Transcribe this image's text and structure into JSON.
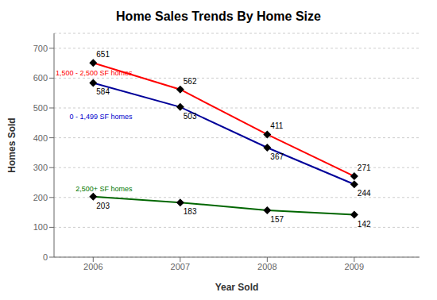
{
  "chart_data": {
    "type": "line",
    "title": "Home Sales Trends By Home Size",
    "xlabel": "Year Sold",
    "ylabel": "Homes Sold",
    "x": [
      2006,
      2007,
      2008,
      2009
    ],
    "series": [
      {
        "name": "1,500 - 2,500 SF homes",
        "color": "#ff0000",
        "marker": "diamond",
        "values": [
          651,
          562,
          411,
          271
        ]
      },
      {
        "name": "0 - 1,499 SF homes",
        "color": "#000099",
        "marker": "diamond",
        "values": [
          584,
          503,
          367,
          244
        ]
      },
      {
        "name": "2,500+ SF homes",
        "color": "#006600",
        "marker": "diamond",
        "values": [
          203,
          183,
          157,
          142
        ]
      }
    ],
    "xlim": [
      2005.55,
      2009.75
    ],
    "xticks": [
      2006,
      2007,
      2008,
      2009
    ],
    "ylim": [
      0,
      750
    ],
    "yticks": [
      0,
      100,
      200,
      300,
      400,
      500,
      600,
      700
    ],
    "grid": true,
    "data_labels": true,
    "annotations": [
      {
        "text": "1,500 - 2,500 SF homes",
        "x": 2006.45,
        "y": 618,
        "color": "#ff0000"
      },
      {
        "text": "0 - 1,499 SF homes",
        "x": 2006.45,
        "y": 470,
        "color": "#0000cc"
      },
      {
        "text": "2,500+ SF homes",
        "x": 2006.45,
        "y": 230,
        "color": "#007700"
      }
    ]
  }
}
